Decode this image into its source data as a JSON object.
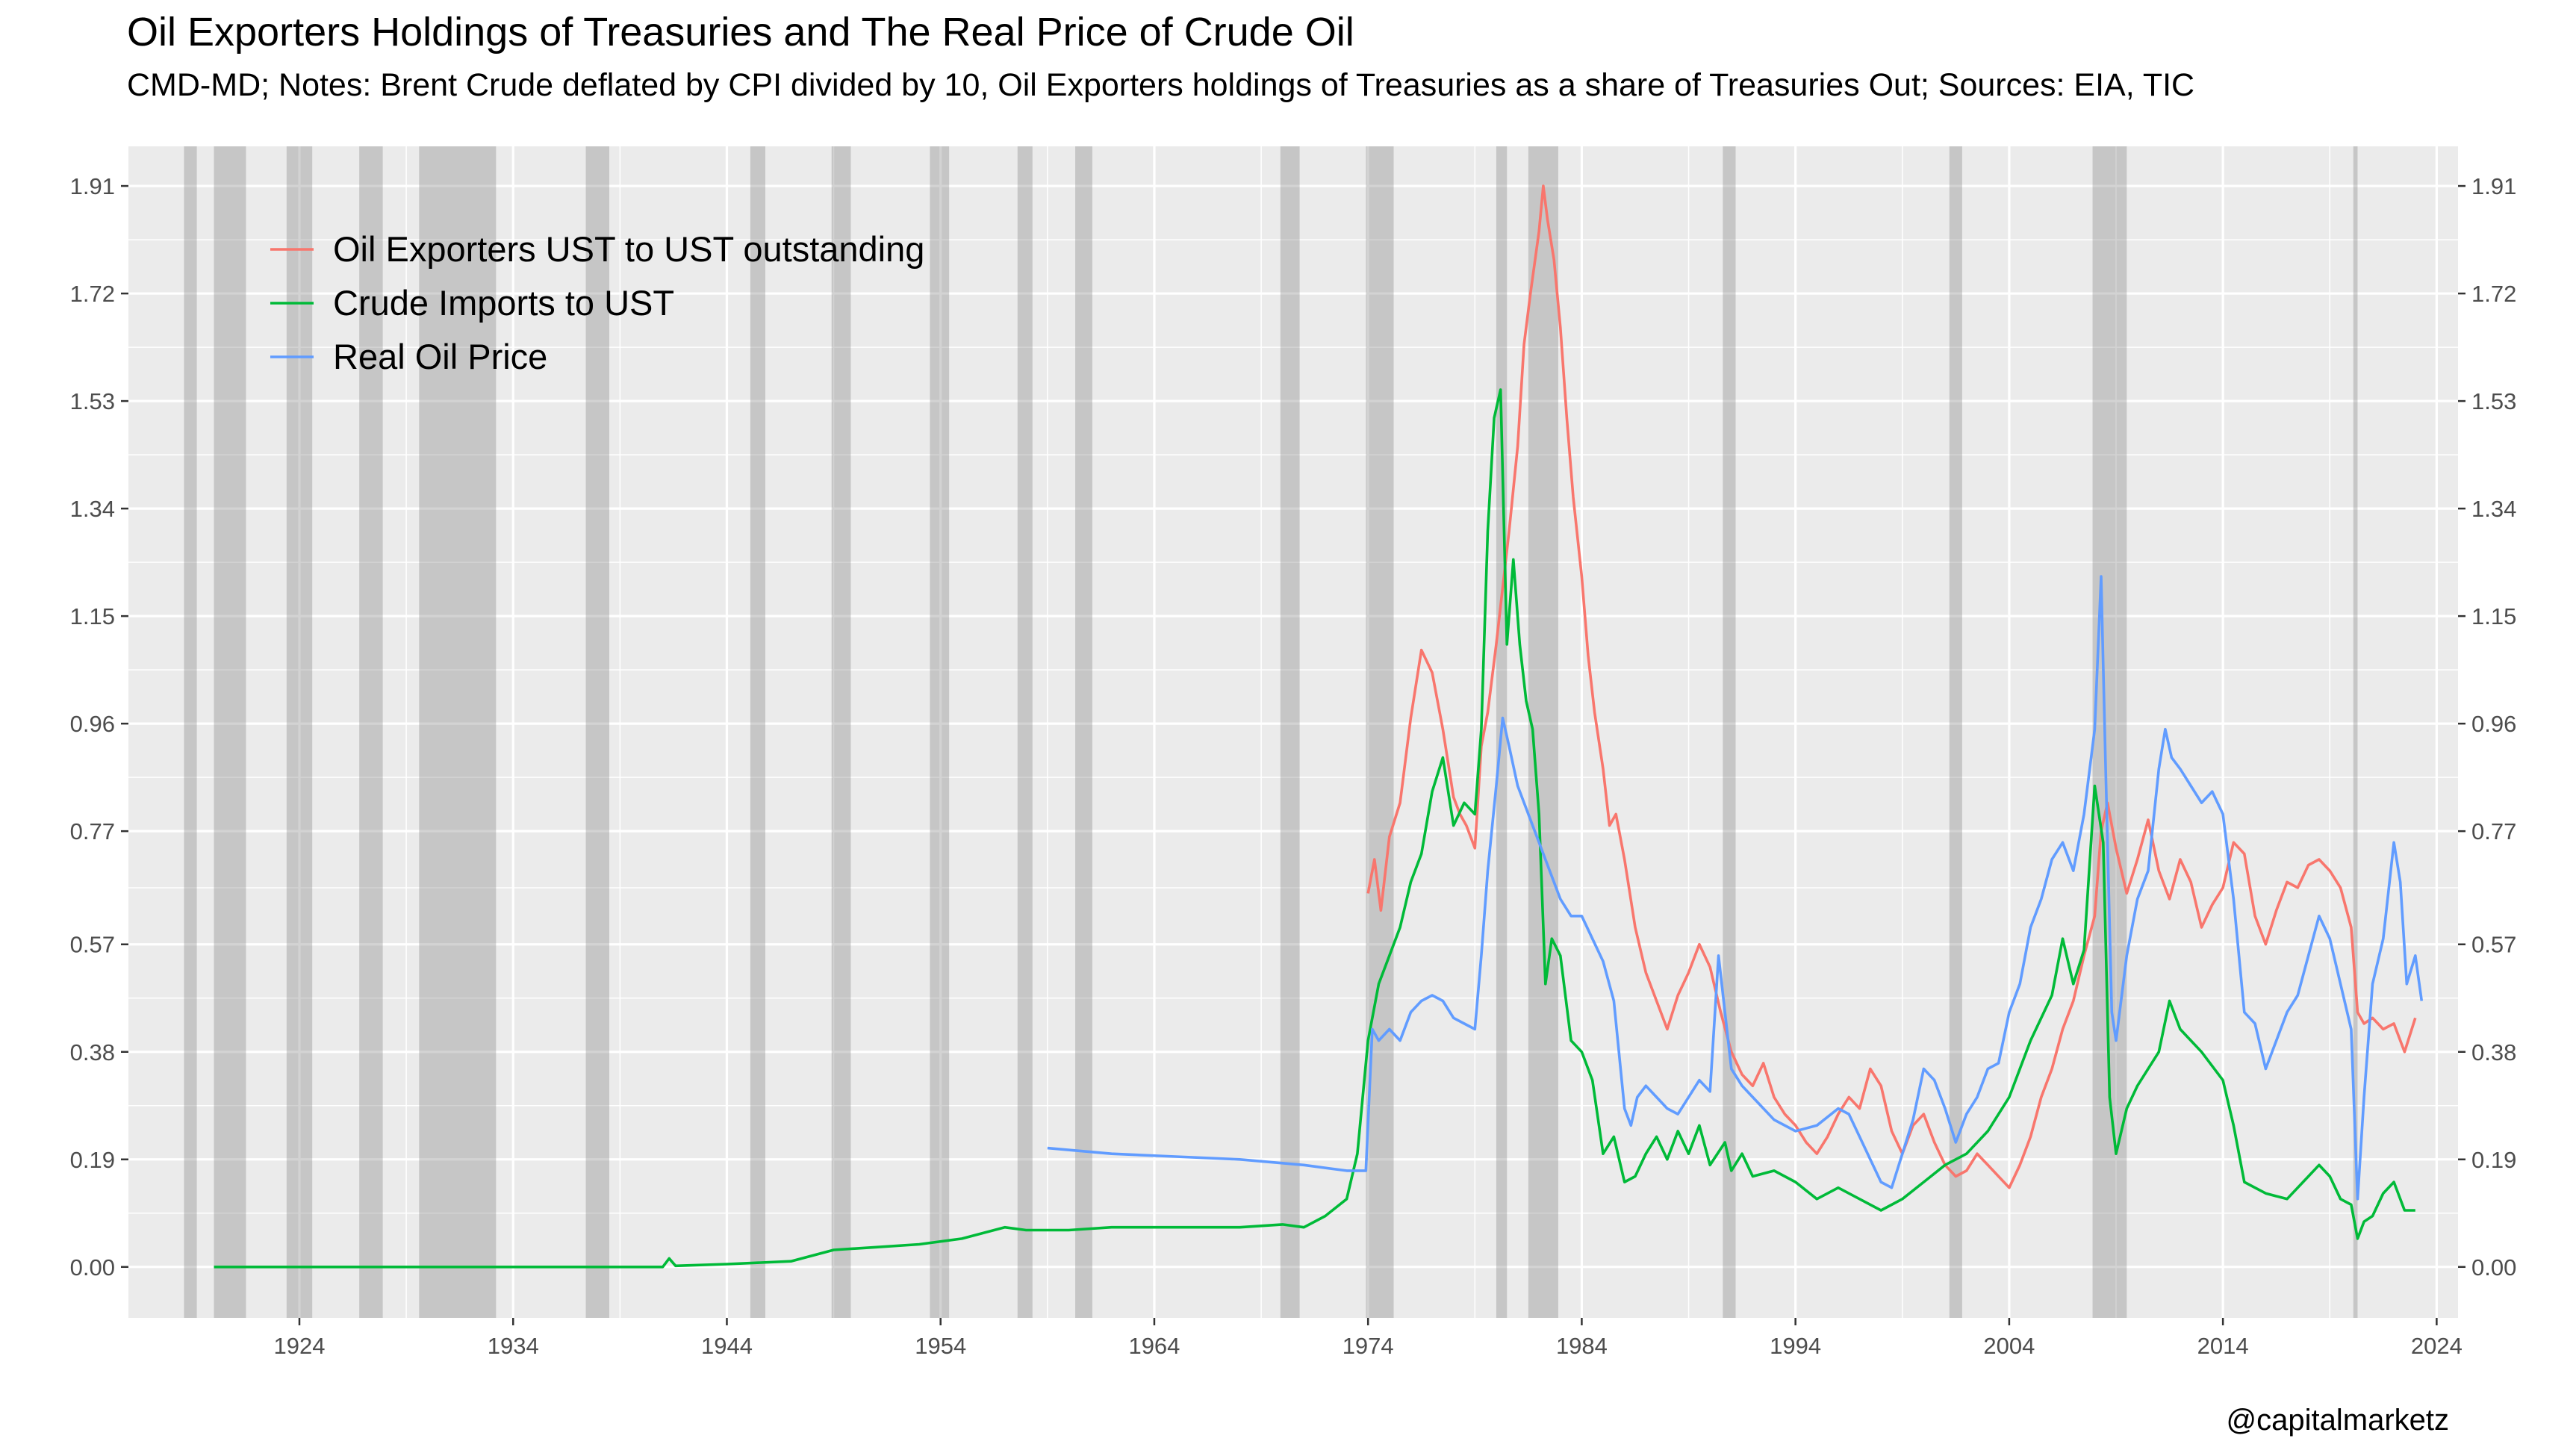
{
  "title": "Oil Exporters Holdings of Treasuries and The Real Price of Crude Oil",
  "subtitle": "CMD-MD; Notes: Brent Crude deflated by CPI divided by 10, Oil Exporters holdings of Treasuries as a share of Treasuries Out; Sources: EIA, TIC",
  "credit": "@capitalmarketz",
  "chart_data": {
    "type": "line",
    "xlim": [
      1916,
      2025
    ],
    "ylim": [
      -0.09,
      1.98
    ],
    "x_ticks": [
      1924,
      1934,
      1944,
      1954,
      1964,
      1974,
      1984,
      1994,
      2004,
      2014,
      2024
    ],
    "x_tick_labels": [
      "1924",
      "1934",
      "1944",
      "1954",
      "1964",
      "1974",
      "1984",
      "1994",
      "2004",
      "2014",
      "2024"
    ],
    "y_ticks": [
      0.0,
      0.19,
      0.38,
      0.57,
      0.77,
      0.96,
      1.15,
      1.34,
      1.53,
      1.72,
      1.91
    ],
    "y_tick_labels": [
      "0.00",
      "0.19",
      "0.38",
      "0.57",
      "0.77",
      "0.96",
      "1.15",
      "1.34",
      "1.53",
      "1.72",
      "1.91"
    ],
    "secondary_y_axis": true,
    "grid": true,
    "legend_position": "top-left",
    "background": "#ebebeb",
    "recessions": [
      [
        1918.6,
        1919.2
      ],
      [
        1920.0,
        1921.5
      ],
      [
        1923.4,
        1924.6
      ],
      [
        1926.8,
        1927.9
      ],
      [
        1929.6,
        1933.2
      ],
      [
        1937.4,
        1938.5
      ],
      [
        1945.1,
        1945.8
      ],
      [
        1948.9,
        1949.8
      ],
      [
        1953.5,
        1954.4
      ],
      [
        1957.6,
        1958.3
      ],
      [
        1960.3,
        1961.1
      ],
      [
        1969.9,
        1970.8
      ],
      [
        1973.9,
        1975.2
      ],
      [
        1980.0,
        1980.5
      ],
      [
        1981.5,
        1982.9
      ],
      [
        1990.6,
        1991.2
      ],
      [
        2001.2,
        2001.8
      ],
      [
        2007.9,
        2009.5
      ],
      [
        2020.1,
        2020.3
      ]
    ],
    "series": [
      {
        "name": "Oil Exporters UST to UST outstanding",
        "color": "#f8766d",
        "x": [
          1974.0,
          1974.3,
          1974.6,
          1975.0,
          1975.5,
          1976.0,
          1976.5,
          1977.0,
          1977.5,
          1978.0,
          1978.3,
          1978.6,
          1979.0,
          1979.3,
          1979.6,
          1980.0,
          1980.3,
          1980.6,
          1981.0,
          1981.3,
          1981.6,
          1982.0,
          1982.2,
          1982.4,
          1982.7,
          1983.0,
          1983.3,
          1983.6,
          1984.0,
          1984.3,
          1984.6,
          1985.0,
          1985.3,
          1985.6,
          1986.0,
          1986.5,
          1987.0,
          1987.5,
          1988.0,
          1988.5,
          1989.0,
          1989.5,
          1990.0,
          1990.5,
          1991.0,
          1991.5,
          1992.0,
          1992.5,
          1993.0,
          1993.5,
          1994.0,
          1994.5,
          1995.0,
          1995.5,
          1996.0,
          1996.5,
          1997.0,
          1997.5,
          1998.0,
          1998.5,
          1999.0,
          1999.5,
          2000.0,
          2000.5,
          2001.0,
          2001.5,
          2002.0,
          2002.5,
          2003.0,
          2003.5,
          2004.0,
          2004.5,
          2005.0,
          2005.5,
          2006.0,
          2006.5,
          2007.0,
          2007.5,
          2008.0,
          2008.3,
          2008.6,
          2009.0,
          2009.5,
          2010.0,
          2010.5,
          2011.0,
          2011.5,
          2012.0,
          2012.5,
          2013.0,
          2013.5,
          2014.0,
          2014.5,
          2015.0,
          2015.5,
          2016.0,
          2016.5,
          2017.0,
          2017.5,
          2018.0,
          2018.5,
          2019.0,
          2019.5,
          2020.0,
          2020.3,
          2020.6,
          2021.0,
          2021.5,
          2022.0,
          2022.5,
          2023.0
        ],
        "y": [
          0.66,
          0.72,
          0.63,
          0.76,
          0.82,
          0.97,
          1.09,
          1.05,
          0.95,
          0.83,
          0.8,
          0.78,
          0.74,
          0.92,
          0.98,
          1.1,
          1.2,
          1.3,
          1.45,
          1.63,
          1.72,
          1.83,
          1.91,
          1.85,
          1.78,
          1.66,
          1.5,
          1.36,
          1.22,
          1.08,
          0.98,
          0.88,
          0.78,
          0.8,
          0.72,
          0.6,
          0.52,
          0.47,
          0.42,
          0.48,
          0.52,
          0.57,
          0.53,
          0.45,
          0.38,
          0.34,
          0.32,
          0.36,
          0.3,
          0.27,
          0.25,
          0.22,
          0.2,
          0.23,
          0.27,
          0.3,
          0.28,
          0.35,
          0.32,
          0.24,
          0.2,
          0.25,
          0.27,
          0.22,
          0.18,
          0.16,
          0.17,
          0.2,
          0.18,
          0.16,
          0.14,
          0.18,
          0.23,
          0.3,
          0.35,
          0.42,
          0.47,
          0.55,
          0.62,
          0.77,
          0.82,
          0.74,
          0.66,
          0.72,
          0.79,
          0.7,
          0.65,
          0.72,
          0.68,
          0.6,
          0.64,
          0.67,
          0.75,
          0.73,
          0.62,
          0.57,
          0.63,
          0.68,
          0.67,
          0.71,
          0.72,
          0.7,
          0.67,
          0.6,
          0.45,
          0.43,
          0.44,
          0.42,
          0.43,
          0.38,
          0.44
        ]
      },
      {
        "name": "Crude Imports to UST",
        "color": "#00ba38",
        "x": [
          1920.0,
          1941.0,
          1941.3,
          1941.6,
          1944.0,
          1947.0,
          1949.0,
          1951.0,
          1953.0,
          1955.0,
          1957.0,
          1958.0,
          1960.0,
          1962.0,
          1964.0,
          1966.0,
          1968.0,
          1970.0,
          1971.0,
          1972.0,
          1973.0,
          1973.5,
          1974.0,
          1974.5,
          1975.0,
          1975.5,
          1976.0,
          1976.5,
          1977.0,
          1977.5,
          1978.0,
          1978.5,
          1979.0,
          1979.3,
          1979.6,
          1979.9,
          1980.2,
          1980.5,
          1980.8,
          1981.1,
          1981.4,
          1981.7,
          1982.0,
          1982.3,
          1982.6,
          1983.0,
          1983.5,
          1984.0,
          1984.5,
          1985.0,
          1985.5,
          1986.0,
          1986.5,
          1987.0,
          1987.5,
          1988.0,
          1988.5,
          1989.0,
          1989.5,
          1990.0,
          1990.7,
          1991.0,
          1991.5,
          1992.0,
          1993.0,
          1994.0,
          1995.0,
          1996.0,
          1997.0,
          1998.0,
          1999.0,
          2000.0,
          2001.0,
          2002.0,
          2003.0,
          2004.0,
          2005.0,
          2006.0,
          2006.5,
          2007.0,
          2007.5,
          2008.0,
          2008.4,
          2008.7,
          2009.0,
          2009.5,
          2010.0,
          2011.0,
          2011.5,
          2012.0,
          2013.0,
          2014.0,
          2014.5,
          2015.0,
          2016.0,
          2017.0,
          2018.0,
          2018.5,
          2019.0,
          2019.5,
          2020.0,
          2020.3,
          2020.6,
          2021.0,
          2021.5,
          2022.0,
          2022.5,
          2023.0
        ],
        "y": [
          0.0,
          0.0,
          0.015,
          0.002,
          0.005,
          0.01,
          0.03,
          0.035,
          0.04,
          0.05,
          0.07,
          0.065,
          0.065,
          0.07,
          0.07,
          0.07,
          0.07,
          0.075,
          0.07,
          0.09,
          0.12,
          0.2,
          0.4,
          0.5,
          0.55,
          0.6,
          0.68,
          0.73,
          0.84,
          0.9,
          0.78,
          0.82,
          0.8,
          0.95,
          1.3,
          1.5,
          1.55,
          1.1,
          1.25,
          1.1,
          1.0,
          0.95,
          0.8,
          0.5,
          0.58,
          0.55,
          0.4,
          0.38,
          0.33,
          0.2,
          0.23,
          0.15,
          0.16,
          0.2,
          0.23,
          0.19,
          0.24,
          0.2,
          0.25,
          0.18,
          0.22,
          0.17,
          0.2,
          0.16,
          0.17,
          0.15,
          0.12,
          0.14,
          0.12,
          0.1,
          0.12,
          0.15,
          0.18,
          0.2,
          0.24,
          0.3,
          0.4,
          0.48,
          0.58,
          0.5,
          0.56,
          0.85,
          0.75,
          0.3,
          0.2,
          0.28,
          0.32,
          0.38,
          0.47,
          0.42,
          0.38,
          0.33,
          0.25,
          0.15,
          0.13,
          0.12,
          0.16,
          0.18,
          0.16,
          0.12,
          0.11,
          0.05,
          0.08,
          0.09,
          0.13,
          0.15,
          0.1,
          0.1
        ]
      },
      {
        "name": "Real Oil Price",
        "color": "#619cff",
        "x": [
          1959.0,
          1962.0,
          1965.0,
          1968.0,
          1971.0,
          1973.0,
          1973.9,
          1974.2,
          1974.5,
          1975.0,
          1975.5,
          1976.0,
          1976.5,
          1977.0,
          1977.5,
          1978.0,
          1978.5,
          1979.0,
          1979.3,
          1979.6,
          1980.0,
          1980.3,
          1980.6,
          1981.0,
          1981.5,
          1982.0,
          1982.5,
          1983.0,
          1983.5,
          1984.0,
          1984.5,
          1985.0,
          1985.5,
          1986.0,
          1986.3,
          1986.6,
          1987.0,
          1987.5,
          1988.0,
          1988.5,
          1989.0,
          1989.5,
          1990.0,
          1990.4,
          1990.7,
          1991.0,
          1991.5,
          1992.0,
          1993.0,
          1994.0,
          1995.0,
          1996.0,
          1996.5,
          1997.0,
          1998.0,
          1998.5,
          1999.0,
          1999.5,
          2000.0,
          2000.5,
          2001.0,
          2001.5,
          2002.0,
          2002.5,
          2003.0,
          2003.5,
          2004.0,
          2004.5,
          2005.0,
          2005.5,
          2006.0,
          2006.5,
          2007.0,
          2007.5,
          2008.0,
          2008.3,
          2008.5,
          2008.8,
          2009.0,
          2009.5,
          2010.0,
          2010.5,
          2011.0,
          2011.3,
          2011.6,
          2012.0,
          2012.5,
          2013.0,
          2013.5,
          2014.0,
          2014.5,
          2015.0,
          2015.5,
          2016.0,
          2016.5,
          2017.0,
          2017.5,
          2018.0,
          2018.5,
          2019.0,
          2019.5,
          2020.0,
          2020.3,
          2020.6,
          2021.0,
          2021.5,
          2022.0,
          2022.3,
          2022.6,
          2023.0,
          2023.3
        ],
        "y": [
          0.21,
          0.2,
          0.195,
          0.19,
          0.18,
          0.17,
          0.17,
          0.42,
          0.4,
          0.42,
          0.4,
          0.45,
          0.47,
          0.48,
          0.47,
          0.44,
          0.43,
          0.42,
          0.55,
          0.7,
          0.85,
          0.97,
          0.92,
          0.85,
          0.8,
          0.75,
          0.7,
          0.65,
          0.62,
          0.62,
          0.58,
          0.54,
          0.47,
          0.28,
          0.25,
          0.3,
          0.32,
          0.3,
          0.28,
          0.27,
          0.3,
          0.33,
          0.31,
          0.55,
          0.45,
          0.35,
          0.32,
          0.3,
          0.26,
          0.24,
          0.25,
          0.28,
          0.27,
          0.23,
          0.15,
          0.14,
          0.2,
          0.26,
          0.35,
          0.33,
          0.28,
          0.22,
          0.27,
          0.3,
          0.35,
          0.36,
          0.45,
          0.5,
          0.6,
          0.65,
          0.72,
          0.75,
          0.7,
          0.8,
          0.95,
          1.22,
          0.9,
          0.45,
          0.4,
          0.55,
          0.65,
          0.7,
          0.88,
          0.95,
          0.9,
          0.88,
          0.85,
          0.82,
          0.84,
          0.8,
          0.65,
          0.45,
          0.43,
          0.35,
          0.4,
          0.45,
          0.48,
          0.55,
          0.62,
          0.58,
          0.5,
          0.42,
          0.12,
          0.3,
          0.5,
          0.58,
          0.75,
          0.68,
          0.5,
          0.55,
          0.47
        ]
      }
    ]
  }
}
